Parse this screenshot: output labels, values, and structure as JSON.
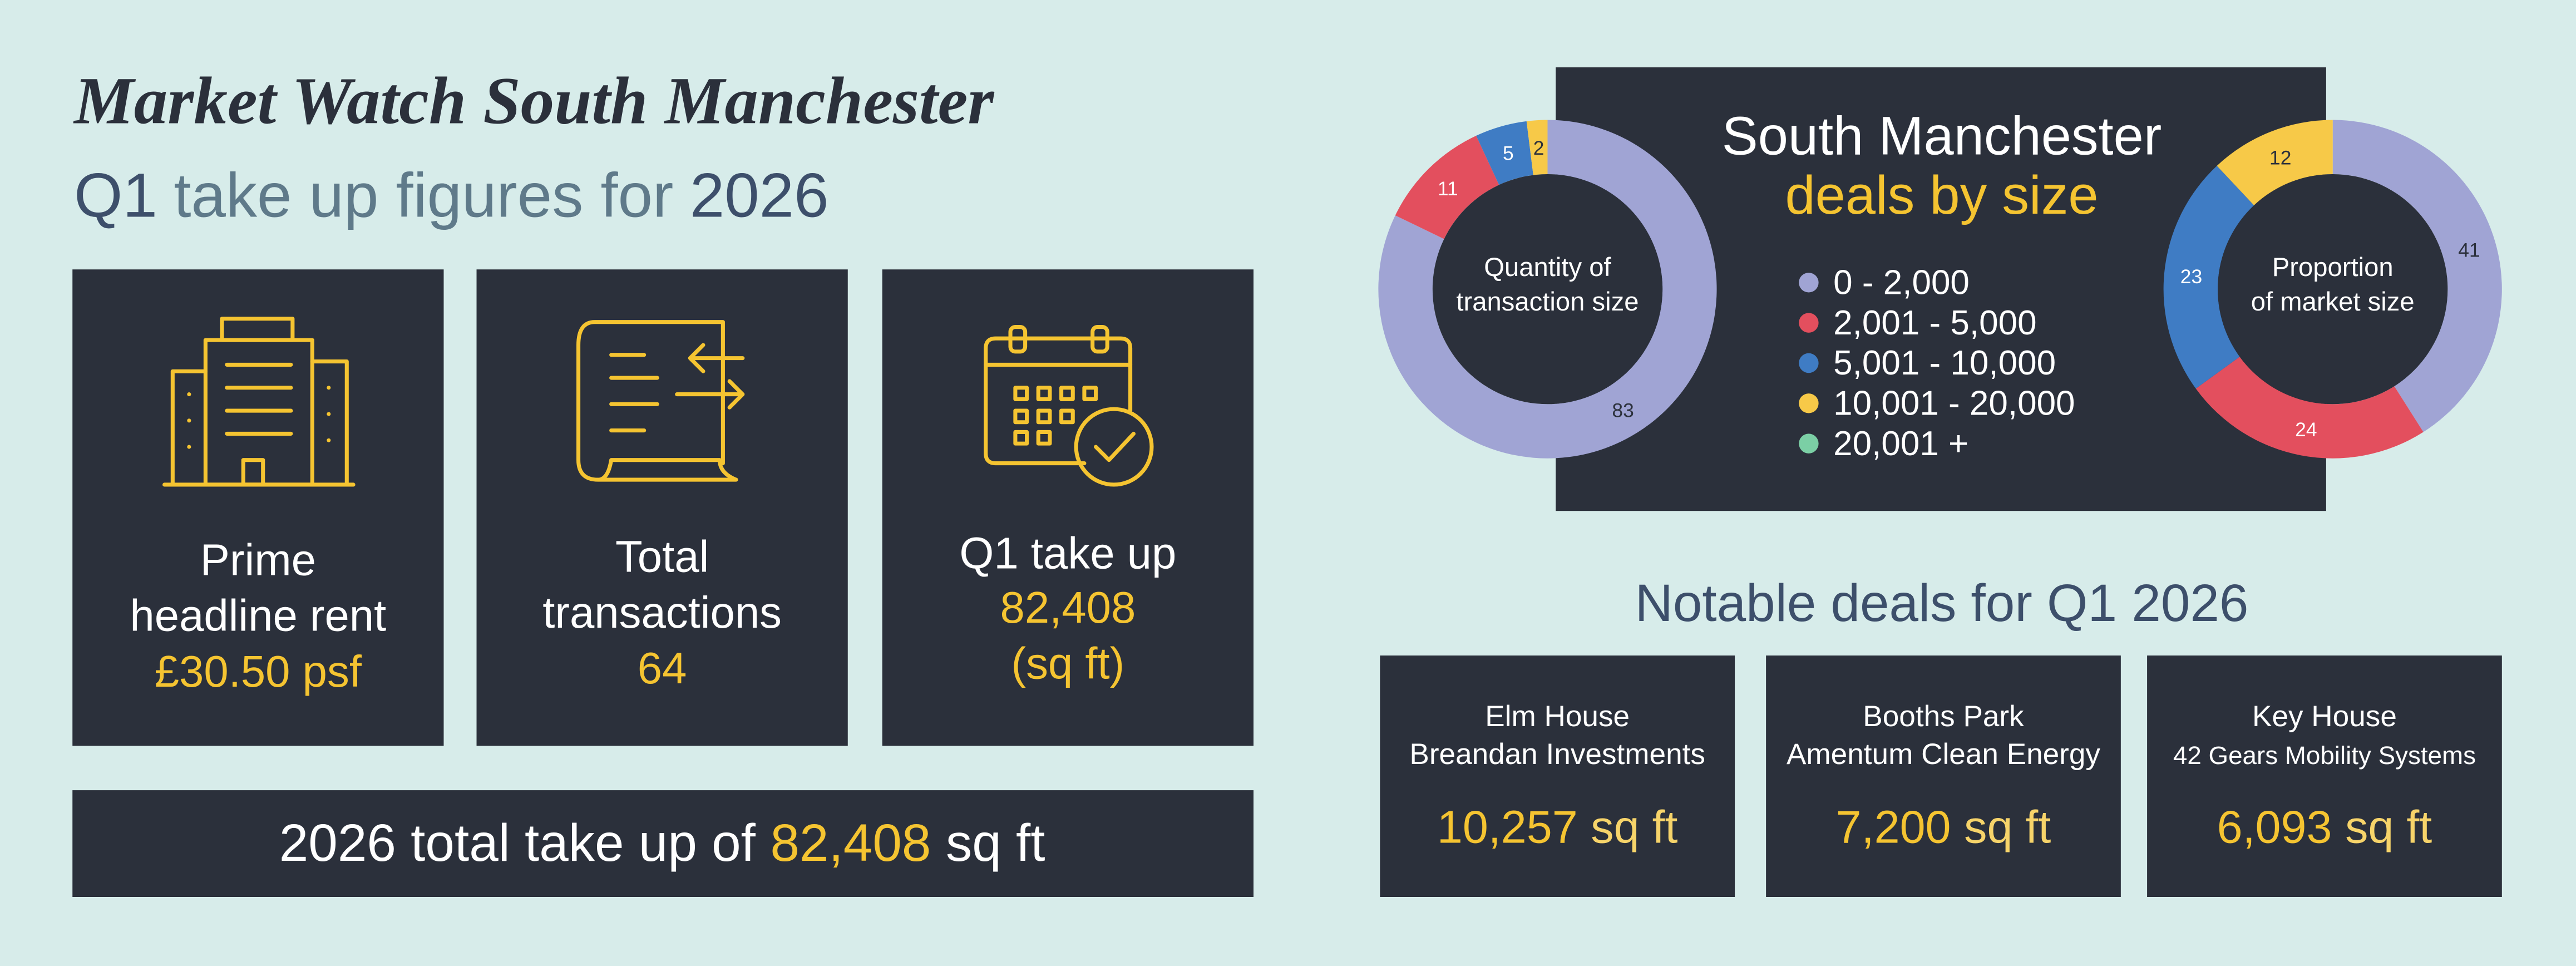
{
  "header": {
    "title": "Market Watch South Manchester",
    "subtitle": [
      "Q1",
      "take up figures for",
      "2026"
    ]
  },
  "stats": [
    {
      "label": [
        "Prime",
        "headline rent"
      ],
      "value": "£30.50 psf"
    },
    {
      "label": [
        "Total",
        "transactions"
      ],
      "value": "64"
    },
    {
      "label": [
        "Q1 take up"
      ],
      "value": [
        "82,408",
        "(sq ft)"
      ]
    }
  ],
  "total_bar": [
    "2026 total take up of",
    "82,408",
    "sq ft"
  ],
  "chart_data": {
    "type": "donut",
    "title": "South Manchester",
    "subtitle": "deals by size",
    "categories": [
      "0 - 2,000",
      "2,001 - 5,000",
      "5,001 - 10,000",
      "10,001 - 20,000",
      "20,001 +"
    ],
    "colors": [
      "#a0a4d4",
      "#e34f5e",
      "#3f7cc4",
      "#f7c948",
      "#7bcfa5"
    ],
    "series": [
      {
        "label": [
          "Quantity of",
          "transaction size"
        ],
        "values": [
          83,
          11,
          5,
          2,
          0
        ]
      },
      {
        "label": [
          "Proportion",
          "of market size"
        ],
        "values": [
          41,
          24,
          23,
          12,
          0
        ]
      }
    ]
  },
  "notable": {
    "title": "Notable deals for Q1 2026",
    "deals": [
      {
        "name": "Elm House",
        "company": "Breandan Investments",
        "area": "10,257",
        "unit": "sq ft"
      },
      {
        "name": "Booths Park",
        "company": "Amentum Clean Energy",
        "area": "7,200",
        "unit": "sq ft"
      },
      {
        "name": "Key House",
        "company": "42 Gears Mobility Systems",
        "area": "6,093",
        "unit": "sq ft"
      }
    ]
  }
}
